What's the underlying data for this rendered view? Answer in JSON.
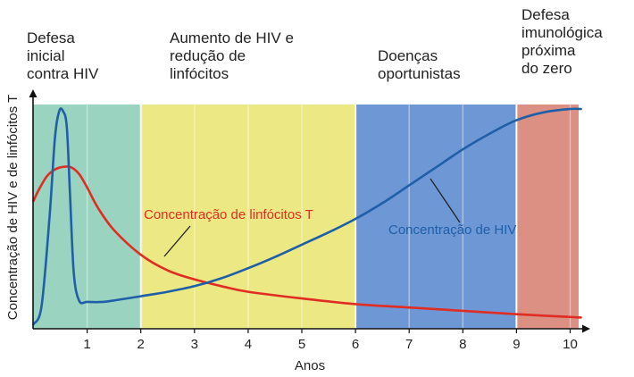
{
  "chart_data": {
    "type": "line",
    "title": "",
    "xlabel": "Anos",
    "ylabel": "Concentração de HIV e de linfócitos T",
    "xlim": [
      0,
      10.2
    ],
    "ylim": [
      0,
      1
    ],
    "y_ticks_shown": false,
    "x_ticks": [
      1,
      2,
      3,
      4,
      5,
      6,
      7,
      8,
      9,
      10
    ],
    "phases": [
      {
        "label_lines": [
          "Defesa",
          "inicial",
          "contra HIV"
        ],
        "from": 0,
        "to": 2,
        "color": "#9ad3bf"
      },
      {
        "label_lines": [
          "Aumento de HIV e",
          "redução de",
          "linfócitos"
        ],
        "from": 2,
        "to": 6,
        "color": "#ece883"
      },
      {
        "label_lines": [
          "Doenças",
          "oportunistas"
        ],
        "from": 6,
        "to": 9,
        "color": "#6e97d6"
      },
      {
        "label_lines": [
          "Defesa",
          "imunológica",
          "próxima",
          "do zero"
        ],
        "from": 9,
        "to": 10.2,
        "color": "#dc8f83"
      }
    ],
    "series": [
      {
        "name": "Concentração de linfócitos T",
        "color": "#e02d24",
        "x": [
          0,
          0.1,
          0.25,
          0.4,
          0.55,
          0.7,
          0.85,
          1.0,
          1.2,
          1.5,
          2.0,
          2.5,
          3.0,
          3.5,
          4.0,
          5.0,
          6.0,
          7.0,
          8.0,
          9.0,
          10.2
        ],
        "y": [
          0.57,
          0.62,
          0.68,
          0.71,
          0.722,
          0.72,
          0.69,
          0.63,
          0.54,
          0.44,
          0.33,
          0.26,
          0.22,
          0.19,
          0.165,
          0.135,
          0.11,
          0.095,
          0.08,
          0.065,
          0.05
        ]
      },
      {
        "name": "Concentração de HIV",
        "color": "#1f5fa8",
        "x": [
          0,
          0.15,
          0.3,
          0.4,
          0.48,
          0.55,
          0.62,
          0.68,
          0.75,
          0.85,
          1.0,
          1.3,
          1.6,
          2.0,
          2.5,
          3.0,
          3.5,
          4.0,
          4.5,
          5.0,
          5.5,
          6.0,
          6.5,
          7.0,
          7.5,
          8.0,
          8.5,
          9.0,
          9.5,
          10.0,
          10.2
        ],
        "y": [
          0.02,
          0.1,
          0.5,
          0.85,
          0.97,
          0.97,
          0.9,
          0.6,
          0.25,
          0.125,
          0.12,
          0.12,
          0.13,
          0.145,
          0.165,
          0.19,
          0.225,
          0.27,
          0.32,
          0.375,
          0.43,
          0.49,
          0.56,
          0.64,
          0.72,
          0.8,
          0.87,
          0.93,
          0.965,
          0.98,
          0.98
        ]
      }
    ],
    "annotations": [
      {
        "text": "Concentração de linfócitos T",
        "color": "#e02d24",
        "series": "Concentração de linfócitos T"
      },
      {
        "text": "Concentração de HIV",
        "color": "#1f5fa8",
        "series": "Concentração de HIV"
      }
    ]
  }
}
